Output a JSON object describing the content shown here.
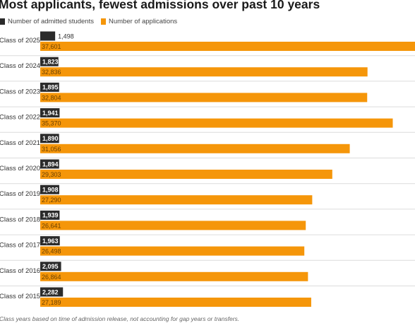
{
  "chart_data": {
    "type": "bar",
    "orientation": "horizontal",
    "title": "Most applicants, fewest admissions over past 10 years",
    "categories": [
      "Class of 2025",
      "Class of 2024",
      "Class of 2023",
      "Class of 2022",
      "Class of 2021",
      "Class of 2020",
      "Class of 2019",
      "Class of 2018",
      "Class of 2017",
      "Class of 2016",
      "Class of 2015"
    ],
    "series": [
      {
        "name": "Number of admitted students",
        "color": "#2b2b2b",
        "values": [
          1498,
          1823,
          1895,
          1941,
          1890,
          1894,
          1908,
          1939,
          1963,
          2095,
          2282
        ],
        "labels": [
          "1,498",
          "1,823",
          "1,895",
          "1,941",
          "1,890",
          "1,894",
          "1,908",
          "1,939",
          "1,963",
          "2,095",
          "2,282"
        ]
      },
      {
        "name": "Number of applications",
        "color": "#f5960a",
        "values": [
          37601,
          32836,
          32804,
          35370,
          31056,
          29303,
          27290,
          26641,
          26498,
          26864,
          27189
        ],
        "labels": [
          "37,601",
          "32,836",
          "32,804",
          "35,370",
          "31,056",
          "29,303",
          "27,290",
          "26,641",
          "26,498",
          "26,864",
          "27,189"
        ]
      }
    ],
    "legend_position": "top-left",
    "gridlines": true
  },
  "footnote": "Class years based on time of admission release, not accounting for gap years or transfers."
}
